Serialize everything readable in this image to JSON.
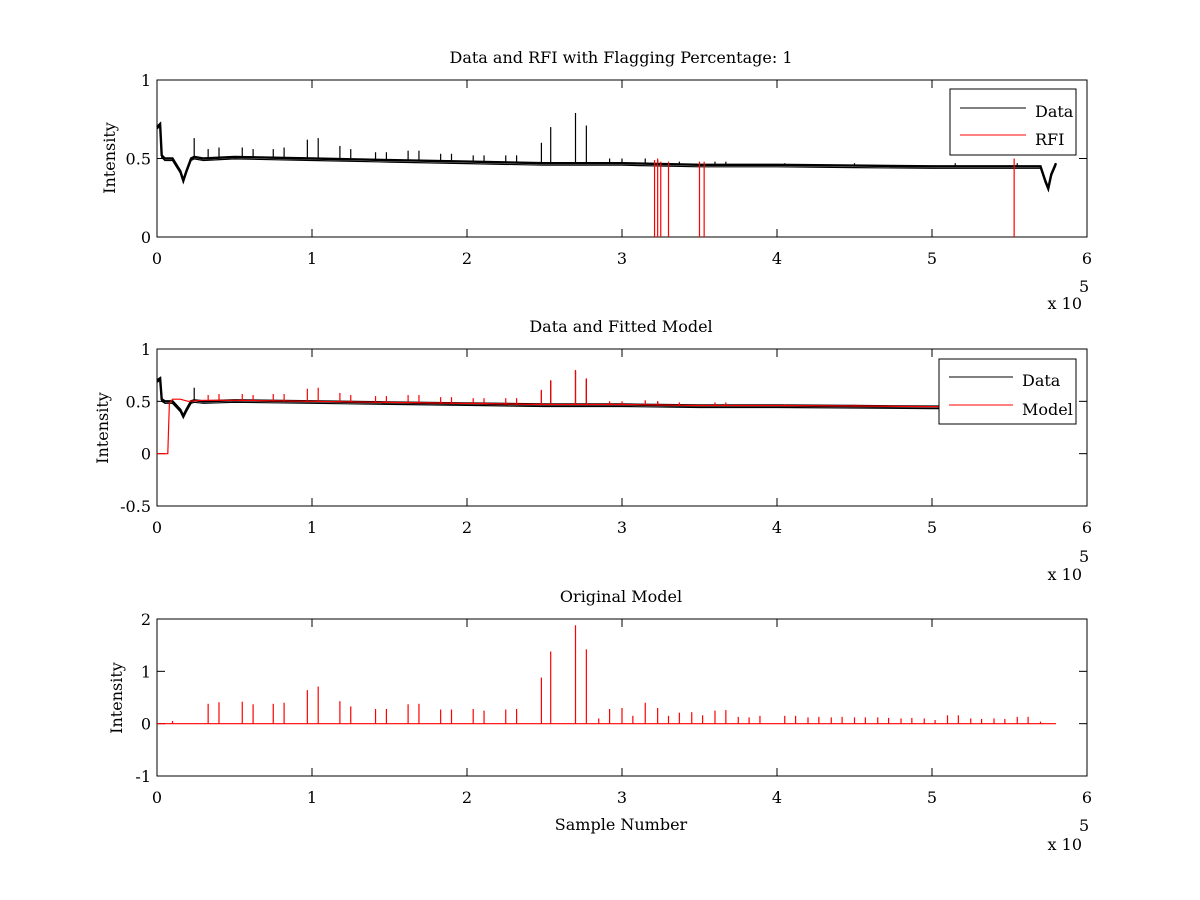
{
  "colors": {
    "data": "#000000",
    "rfi": "#ff0000",
    "model": "#ff0000",
    "axes": "#000000",
    "background": "#ffffff"
  },
  "chart_data": [
    {
      "type": "line",
      "title": "Data and RFI with Flagging Percentage: 1",
      "xlabel": "",
      "ylabel": "Intensity",
      "xlim": [
        0,
        6
      ],
      "ylim": [
        0,
        1
      ],
      "xticks": [
        "0",
        "1",
        "2",
        "3",
        "4",
        "5",
        "6"
      ],
      "yticks": [
        "0",
        "0.5",
        "1"
      ],
      "x_multiplier_label": "x 10",
      "x_multiplier_exponent": "5",
      "grid": false,
      "legend_position": "top-right",
      "series": [
        {
          "name": "Data",
          "color": "#000000",
          "baseline": {
            "x": [
              0,
              0.02,
              0.03,
              0.05,
              0.1,
              0.15,
              0.17,
              0.19,
              0.22,
              0.24,
              0.3,
              0.5,
              1.0,
              1.5,
              2.0,
              2.5,
              3.0,
              3.5,
              4.0,
              4.5,
              5.0,
              5.5,
              5.7,
              5.73,
              5.75,
              5.77,
              5.8
            ],
            "y": [
              0.7,
              0.72,
              0.52,
              0.5,
              0.5,
              0.42,
              0.36,
              0.42,
              0.5,
              0.51,
              0.5,
              0.51,
              0.5,
              0.49,
              0.48,
              0.47,
              0.47,
              0.46,
              0.46,
              0.455,
              0.45,
              0.45,
              0.45,
              0.36,
              0.31,
              0.4,
              0.47
            ]
          },
          "spikes": [
            {
              "x": 0.24,
              "y": 0.63
            },
            {
              "x": 0.33,
              "y": 0.56
            },
            {
              "x": 0.4,
              "y": 0.57
            },
            {
              "x": 0.55,
              "y": 0.57
            },
            {
              "x": 0.62,
              "y": 0.56
            },
            {
              "x": 0.75,
              "y": 0.56
            },
            {
              "x": 0.82,
              "y": 0.57
            },
            {
              "x": 0.97,
              "y": 0.62
            },
            {
              "x": 1.04,
              "y": 0.63
            },
            {
              "x": 1.18,
              "y": 0.58
            },
            {
              "x": 1.25,
              "y": 0.56
            },
            {
              "x": 1.41,
              "y": 0.54
            },
            {
              "x": 1.48,
              "y": 0.54
            },
            {
              "x": 1.62,
              "y": 0.55
            },
            {
              "x": 1.69,
              "y": 0.55
            },
            {
              "x": 1.83,
              "y": 0.53
            },
            {
              "x": 1.9,
              "y": 0.53
            },
            {
              "x": 2.04,
              "y": 0.52
            },
            {
              "x": 2.11,
              "y": 0.52
            },
            {
              "x": 2.25,
              "y": 0.52
            },
            {
              "x": 2.32,
              "y": 0.52
            },
            {
              "x": 2.48,
              "y": 0.6
            },
            {
              "x": 2.54,
              "y": 0.7
            },
            {
              "x": 2.7,
              "y": 0.79
            },
            {
              "x": 2.77,
              "y": 0.71
            },
            {
              "x": 2.92,
              "y": 0.5
            },
            {
              "x": 3.0,
              "y": 0.5
            },
            {
              "x": 3.15,
              "y": 0.5
            },
            {
              "x": 3.23,
              "y": 0.49
            },
            {
              "x": 3.37,
              "y": 0.48
            },
            {
              "x": 3.6,
              "y": 0.48
            },
            {
              "x": 3.67,
              "y": 0.48
            },
            {
              "x": 4.05,
              "y": 0.47
            },
            {
              "x": 4.5,
              "y": 0.47
            },
            {
              "x": 5.15,
              "y": 0.47
            },
            {
              "x": 5.55,
              "y": 0.47
            }
          ]
        },
        {
          "name": "RFI",
          "color": "#ff0000",
          "spikes": [
            {
              "x": 3.21,
              "y": 0.49
            },
            {
              "x": 3.23,
              "y": 0.5
            },
            {
              "x": 3.25,
              "y": 0.48
            },
            {
              "x": 3.3,
              "y": 0.48
            },
            {
              "x": 3.5,
              "y": 0.48
            },
            {
              "x": 3.53,
              "y": 0.48
            },
            {
              "x": 5.53,
              "y": 0.5
            }
          ]
        }
      ]
    },
    {
      "type": "line",
      "title": "Data and Fitted Model",
      "xlabel": "",
      "ylabel": "Intensity",
      "xlim": [
        0,
        6
      ],
      "ylim": [
        -0.5,
        1
      ],
      "xticks": [
        "0",
        "1",
        "2",
        "3",
        "4",
        "5",
        "6"
      ],
      "yticks": [
        "-0.5",
        "0",
        "0.5",
        "1"
      ],
      "x_multiplier_label": "x 10",
      "x_multiplier_exponent": "5",
      "grid": false,
      "legend_position": "top-right",
      "series": [
        {
          "name": "Data",
          "color": "#000000",
          "baseline": {
            "x": [
              0,
              0.02,
              0.03,
              0.05,
              0.1,
              0.15,
              0.17,
              0.19,
              0.22,
              0.24,
              0.3,
              0.5,
              1.0,
              1.5,
              2.0,
              2.5,
              3.0,
              3.5,
              4.0,
              4.5,
              5.0,
              5.1
            ],
            "y": [
              0.7,
              0.72,
              0.52,
              0.5,
              0.5,
              0.42,
              0.36,
              0.42,
              0.5,
              0.51,
              0.5,
              0.51,
              0.5,
              0.49,
              0.48,
              0.47,
              0.47,
              0.46,
              0.46,
              0.455,
              0.45,
              0.45
            ]
          },
          "spikes": [
            {
              "x": 0.24,
              "y": 0.63
            },
            {
              "x": 2.48,
              "y": 0.6
            },
            {
              "x": 2.54,
              "y": 0.7
            },
            {
              "x": 2.7,
              "y": 0.79
            },
            {
              "x": 2.77,
              "y": 0.71
            },
            {
              "x": 3.23,
              "y": 0.5
            }
          ]
        },
        {
          "name": "Model",
          "color": "#ff0000",
          "baseline": {
            "x": [
              0,
              0.07,
              0.075,
              0.08,
              0.1,
              0.15,
              0.2,
              0.3,
              0.5,
              1.0,
              1.5,
              2.0,
              2.5,
              3.0,
              3.5,
              4.0,
              4.5,
              5.0,
              5.1
            ],
            "y": [
              0.0,
              0.0,
              0.25,
              0.48,
              0.52,
              0.52,
              0.5,
              0.51,
              0.51,
              0.5,
              0.49,
              0.48,
              0.47,
              0.47,
              0.46,
              0.46,
              0.455,
              0.45,
              0.45
            ]
          },
          "spikes": [
            {
              "x": 0.33,
              "y": 0.56
            },
            {
              "x": 0.4,
              "y": 0.57
            },
            {
              "x": 0.55,
              "y": 0.57
            },
            {
              "x": 0.62,
              "y": 0.56
            },
            {
              "x": 0.75,
              "y": 0.57
            },
            {
              "x": 0.82,
              "y": 0.57
            },
            {
              "x": 0.97,
              "y": 0.62
            },
            {
              "x": 1.04,
              "y": 0.63
            },
            {
              "x": 1.18,
              "y": 0.58
            },
            {
              "x": 1.25,
              "y": 0.56
            },
            {
              "x": 1.41,
              "y": 0.55
            },
            {
              "x": 1.48,
              "y": 0.55
            },
            {
              "x": 1.62,
              "y": 0.56
            },
            {
              "x": 1.69,
              "y": 0.56
            },
            {
              "x": 1.83,
              "y": 0.54
            },
            {
              "x": 1.9,
              "y": 0.54
            },
            {
              "x": 2.04,
              "y": 0.53
            },
            {
              "x": 2.11,
              "y": 0.53
            },
            {
              "x": 2.25,
              "y": 0.53
            },
            {
              "x": 2.32,
              "y": 0.53
            },
            {
              "x": 2.48,
              "y": 0.61
            },
            {
              "x": 2.54,
              "y": 0.7
            },
            {
              "x": 2.7,
              "y": 0.8
            },
            {
              "x": 2.77,
              "y": 0.72
            },
            {
              "x": 2.92,
              "y": 0.5
            },
            {
              "x": 3.0,
              "y": 0.5
            },
            {
              "x": 3.15,
              "y": 0.51
            },
            {
              "x": 3.23,
              "y": 0.5
            },
            {
              "x": 3.37,
              "y": 0.49
            },
            {
              "x": 3.6,
              "y": 0.49
            },
            {
              "x": 3.67,
              "y": 0.49
            },
            {
              "x": 4.05,
              "y": 0.47
            },
            {
              "x": 4.5,
              "y": 0.47
            },
            {
              "x": 5.05,
              "y": 0.46
            }
          ]
        }
      ]
    },
    {
      "type": "line",
      "title": "Original Model",
      "xlabel": "Sample Number",
      "ylabel": "Intensity",
      "xlim": [
        0,
        6
      ],
      "ylim": [
        -1,
        2
      ],
      "xticks": [
        "0",
        "1",
        "2",
        "3",
        "4",
        "5",
        "6"
      ],
      "yticks": [
        "-1",
        "0",
        "1",
        "2"
      ],
      "x_multiplier_label": "x 10",
      "x_multiplier_exponent": "5",
      "grid": false,
      "series": [
        {
          "color": "#ff0000",
          "baseline": {
            "x": [
              0,
              5.8
            ],
            "y": [
              0,
              0
            ]
          },
          "spikes": [
            {
              "x": 0.1,
              "y": 0.05
            },
            {
              "x": 0.33,
              "y": 0.38
            },
            {
              "x": 0.4,
              "y": 0.41
            },
            {
              "x": 0.55,
              "y": 0.42
            },
            {
              "x": 0.62,
              "y": 0.37
            },
            {
              "x": 0.75,
              "y": 0.38
            },
            {
              "x": 0.82,
              "y": 0.4
            },
            {
              "x": 0.97,
              "y": 0.64
            },
            {
              "x": 1.04,
              "y": 0.71
            },
            {
              "x": 1.18,
              "y": 0.43
            },
            {
              "x": 1.25,
              "y": 0.33
            },
            {
              "x": 1.41,
              "y": 0.28
            },
            {
              "x": 1.48,
              "y": 0.28
            },
            {
              "x": 1.62,
              "y": 0.37
            },
            {
              "x": 1.69,
              "y": 0.38
            },
            {
              "x": 1.83,
              "y": 0.27
            },
            {
              "x": 1.9,
              "y": 0.27
            },
            {
              "x": 2.04,
              "y": 0.28
            },
            {
              "x": 2.11,
              "y": 0.25
            },
            {
              "x": 2.25,
              "y": 0.27
            },
            {
              "x": 2.32,
              "y": 0.28
            },
            {
              "x": 2.48,
              "y": 0.88
            },
            {
              "x": 2.54,
              "y": 1.38
            },
            {
              "x": 2.7,
              "y": 1.88
            },
            {
              "x": 2.77,
              "y": 1.42
            },
            {
              "x": 2.85,
              "y": 0.1
            },
            {
              "x": 2.92,
              "y": 0.28
            },
            {
              "x": 3.0,
              "y": 0.3
            },
            {
              "x": 3.07,
              "y": 0.15
            },
            {
              "x": 3.15,
              "y": 0.4
            },
            {
              "x": 3.23,
              "y": 0.3
            },
            {
              "x": 3.3,
              "y": 0.15
            },
            {
              "x": 3.37,
              "y": 0.21
            },
            {
              "x": 3.45,
              "y": 0.22
            },
            {
              "x": 3.52,
              "y": 0.16
            },
            {
              "x": 3.6,
              "y": 0.25
            },
            {
              "x": 3.67,
              "y": 0.26
            },
            {
              "x": 3.75,
              "y": 0.13
            },
            {
              "x": 3.82,
              "y": 0.12
            },
            {
              "x": 3.89,
              "y": 0.15
            },
            {
              "x": 4.05,
              "y": 0.15
            },
            {
              "x": 4.12,
              "y": 0.15
            },
            {
              "x": 4.2,
              "y": 0.12
            },
            {
              "x": 4.27,
              "y": 0.13
            },
            {
              "x": 4.35,
              "y": 0.12
            },
            {
              "x": 4.42,
              "y": 0.13
            },
            {
              "x": 4.5,
              "y": 0.12
            },
            {
              "x": 4.57,
              "y": 0.12
            },
            {
              "x": 4.65,
              "y": 0.12
            },
            {
              "x": 4.72,
              "y": 0.11
            },
            {
              "x": 4.8,
              "y": 0.1
            },
            {
              "x": 4.87,
              "y": 0.11
            },
            {
              "x": 4.95,
              "y": 0.1
            },
            {
              "x": 5.02,
              "y": 0.07
            },
            {
              "x": 5.1,
              "y": 0.16
            },
            {
              "x": 5.17,
              "y": 0.16
            },
            {
              "x": 5.25,
              "y": 0.1
            },
            {
              "x": 5.32,
              "y": 0.09
            },
            {
              "x": 5.4,
              "y": 0.1
            },
            {
              "x": 5.47,
              "y": 0.09
            },
            {
              "x": 5.55,
              "y": 0.13
            },
            {
              "x": 5.62,
              "y": 0.13
            },
            {
              "x": 5.7,
              "y": 0.04
            }
          ]
        }
      ]
    }
  ]
}
